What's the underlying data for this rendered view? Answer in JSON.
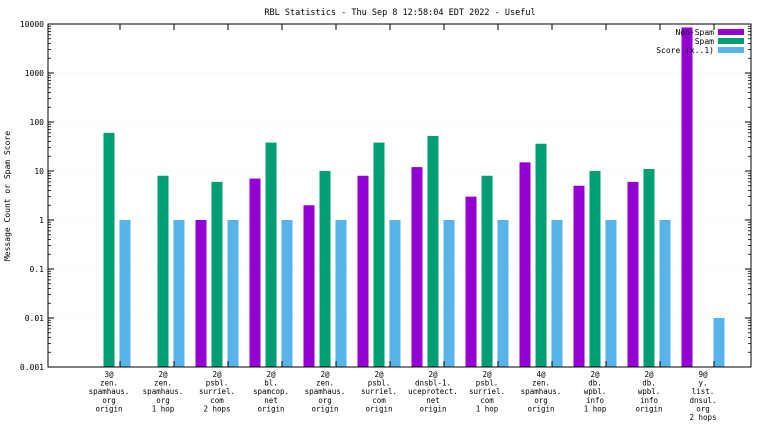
{
  "chart_data": {
    "type": "bar",
    "title": "RBL Statistics - Thu Sep  8 12:58:04 EDT 2022 - Useful",
    "ylabel": "Message Count or Spam Score",
    "xlabel": "",
    "yscale": "log",
    "ylim": [
      0.001,
      10000
    ],
    "yticks": [
      "0.001",
      "0.01",
      "0.1",
      "1",
      "10",
      "100",
      "1000",
      "10000"
    ],
    "legend_position": "top-right",
    "categories": [
      [
        "3@",
        "zen.",
        "spamhaus.",
        "org",
        "origin"
      ],
      [
        "2@",
        "zen.",
        "spamhaus.",
        "org",
        "1 hop"
      ],
      [
        "2@",
        "psbl.",
        "surriel.",
        "com",
        "2 hops"
      ],
      [
        "2@",
        "bl.",
        "spamcop.",
        "net",
        "origin"
      ],
      [
        "2@",
        "zen.",
        "spamhaus.",
        "org",
        "origin"
      ],
      [
        "2@",
        "psbl.",
        "surriel.",
        "com",
        "origin"
      ],
      [
        "2@",
        "dnsbl-1.",
        "uceprotect.",
        "net",
        "origin"
      ],
      [
        "2@",
        "psbl.",
        "surriel.",
        "com",
        "1 hop"
      ],
      [
        "4@",
        "zen.",
        "spamhaus.",
        "org",
        "origin"
      ],
      [
        "2@",
        "db.",
        "wpbl.",
        "info",
        "1 hop"
      ],
      [
        "2@",
        "db.",
        "wpbl.",
        "info",
        "origin"
      ],
      [
        "9@",
        "y.",
        "list.",
        "dnsul.",
        "org",
        "2 hops"
      ]
    ],
    "series": [
      {
        "name": "Non-Spam",
        "color": "#9400d3",
        "values": [
          null,
          null,
          1,
          7,
          2,
          8,
          12,
          3,
          15,
          5,
          6,
          8500
        ]
      },
      {
        "name": "Spam",
        "color": "#009e73",
        "values": [
          60,
          8,
          6,
          38,
          10,
          38,
          52,
          8,
          36,
          10,
          11,
          null
        ]
      },
      {
        "name": "Score (x..1)",
        "color": "#56b4e9",
        "values": [
          1,
          1,
          1,
          1,
          1,
          1,
          1,
          1,
          1,
          1,
          1,
          0.01
        ]
      }
    ]
  }
}
